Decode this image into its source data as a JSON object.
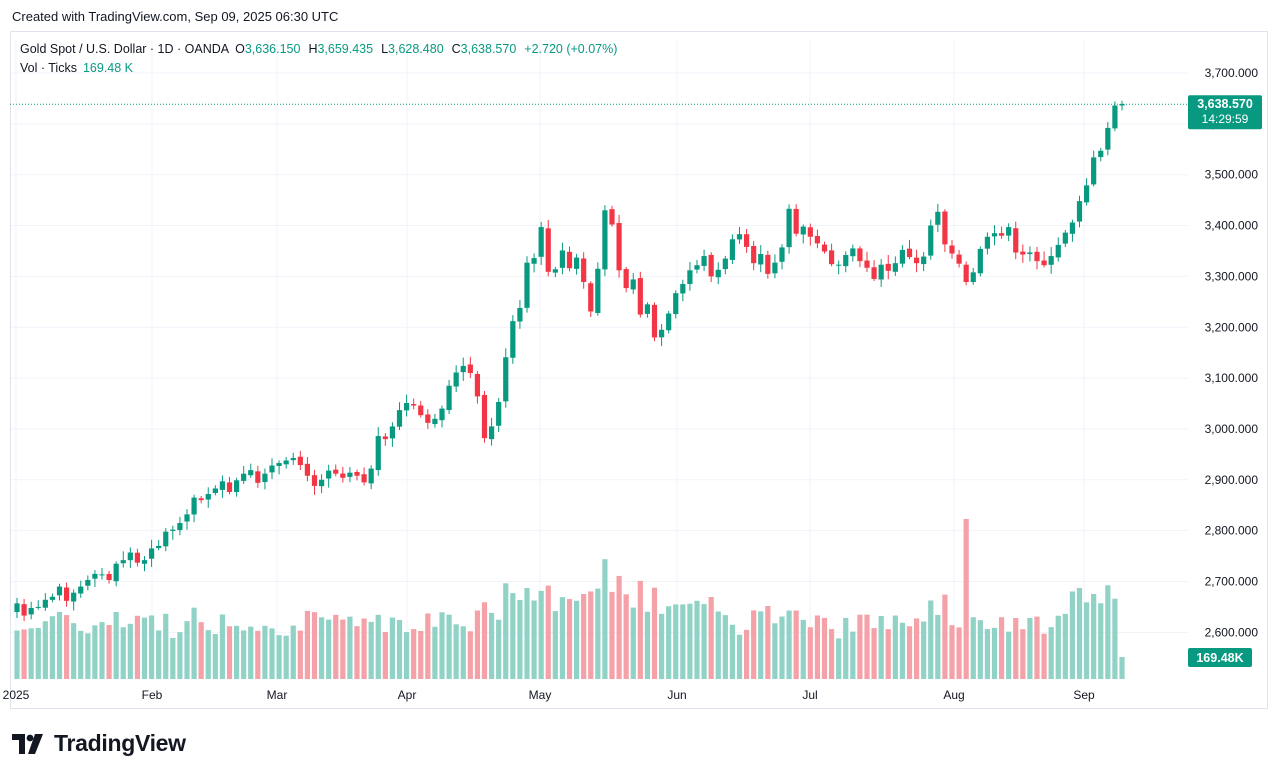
{
  "header": {
    "created": "Created with TradingView.com, Sep 09, 2025 06:30 UTC"
  },
  "legend": {
    "symbol": "Gold Spot / U.S. Dollar · 1D · OANDA",
    "open_label": "O",
    "open": "3,636.150",
    "high_label": "H",
    "high": "3,659.435",
    "low_label": "L",
    "low": "3,628.480",
    "close_label": "C",
    "close": "3,638.570",
    "change": "+2.720 (+0.07%)",
    "volume_label": "Vol · Ticks",
    "volume": "169.48 K"
  },
  "price_axis": {
    "ticks": [
      "3,700.000",
      "3,600.000",
      "3,500.000",
      "3,400.000",
      "3,300.000",
      "3,200.000",
      "3,100.000",
      "3,000.000",
      "2,900.000",
      "2,800.000",
      "2,700.000",
      "2,600.000"
    ]
  },
  "last_price": {
    "price": "3,638.570",
    "countdown": "14:29:59"
  },
  "last_volume": "169.48K",
  "time_axis": {
    "labels": [
      "2025",
      "Feb",
      "Mar",
      "Apr",
      "May",
      "Jun",
      "Jul",
      "Aug",
      "Sep"
    ]
  },
  "footer": {
    "brand": "TradingView"
  },
  "colors": {
    "up": "#089981",
    "down": "#f23645",
    "vol_up": "#91d2c6",
    "vol_down": "#f5a1a8",
    "grid": "#f0f3fa"
  },
  "chart_data": {
    "type": "candlestick",
    "title": "Gold Spot / U.S. Dollar · 1D · OANDA",
    "x_labels": [
      "2025",
      "Feb",
      "Mar",
      "Apr",
      "May",
      "Jun",
      "Jul",
      "Aug",
      "Sep"
    ],
    "ylim": [
      2540,
      3720
    ],
    "y_ticks": [
      2600,
      2700,
      2800,
      2900,
      3000,
      3100,
      3200,
      3300,
      3400,
      3500,
      3600,
      3700
    ],
    "grid": true,
    "series": [
      {
        "name": "Vol · Ticks",
        "type": "volume",
        "last_value": 169.48
      }
    ],
    "closes": [
      2657,
      2633,
      2648,
      2650,
      2664,
      2670,
      2690,
      2662,
      2678,
      2690,
      2703,
      2715,
      2714,
      2703,
      2735,
      2742,
      2757,
      2737,
      2742,
      2765,
      2770,
      2798,
      2802,
      2815,
      2832,
      2865,
      2860,
      2872,
      2883,
      2897,
      2876,
      2899,
      2912,
      2919,
      2894,
      2912,
      2928,
      2933,
      2938,
      2943,
      2929,
      2908,
      2888,
      2900,
      2918,
      2912,
      2904,
      2914,
      2908,
      2895,
      2922,
      2986,
      2980,
      3005,
      3037,
      3051,
      3046,
      3027,
      3012,
      3020,
      3040,
      3085,
      3111,
      3124,
      3110,
      3064,
      2982,
      3005,
      3053,
      3141,
      3212,
      3238,
      3327,
      3336,
      3397,
      3309,
      3314,
      3351,
      3316,
      3337,
      3289,
      3231,
      3315,
      3430,
      3402,
      3312,
      3277,
      3294,
      3225,
      3245,
      3180,
      3195,
      3227,
      3267,
      3285,
      3312,
      3322,
      3340,
      3300,
      3313,
      3335,
      3373,
      3383,
      3358,
      3326,
      3344,
      3305,
      3327,
      3357,
      3433,
      3384,
      3398,
      3378,
      3365,
      3349,
      3324,
      3323,
      3342,
      3355,
      3330,
      3317,
      3295,
      3323,
      3311,
      3326,
      3352,
      3338,
      3326,
      3339,
      3400,
      3427,
      3363,
      3345,
      3325,
      3289,
      3308,
      3354,
      3378,
      3385,
      3380,
      3397,
      3347,
      3343,
      3347,
      3330,
      3322,
      3340,
      3362,
      3386,
      3406,
      3448,
      3479,
      3534,
      3547,
      3592,
      3636,
      3639
    ]
  }
}
